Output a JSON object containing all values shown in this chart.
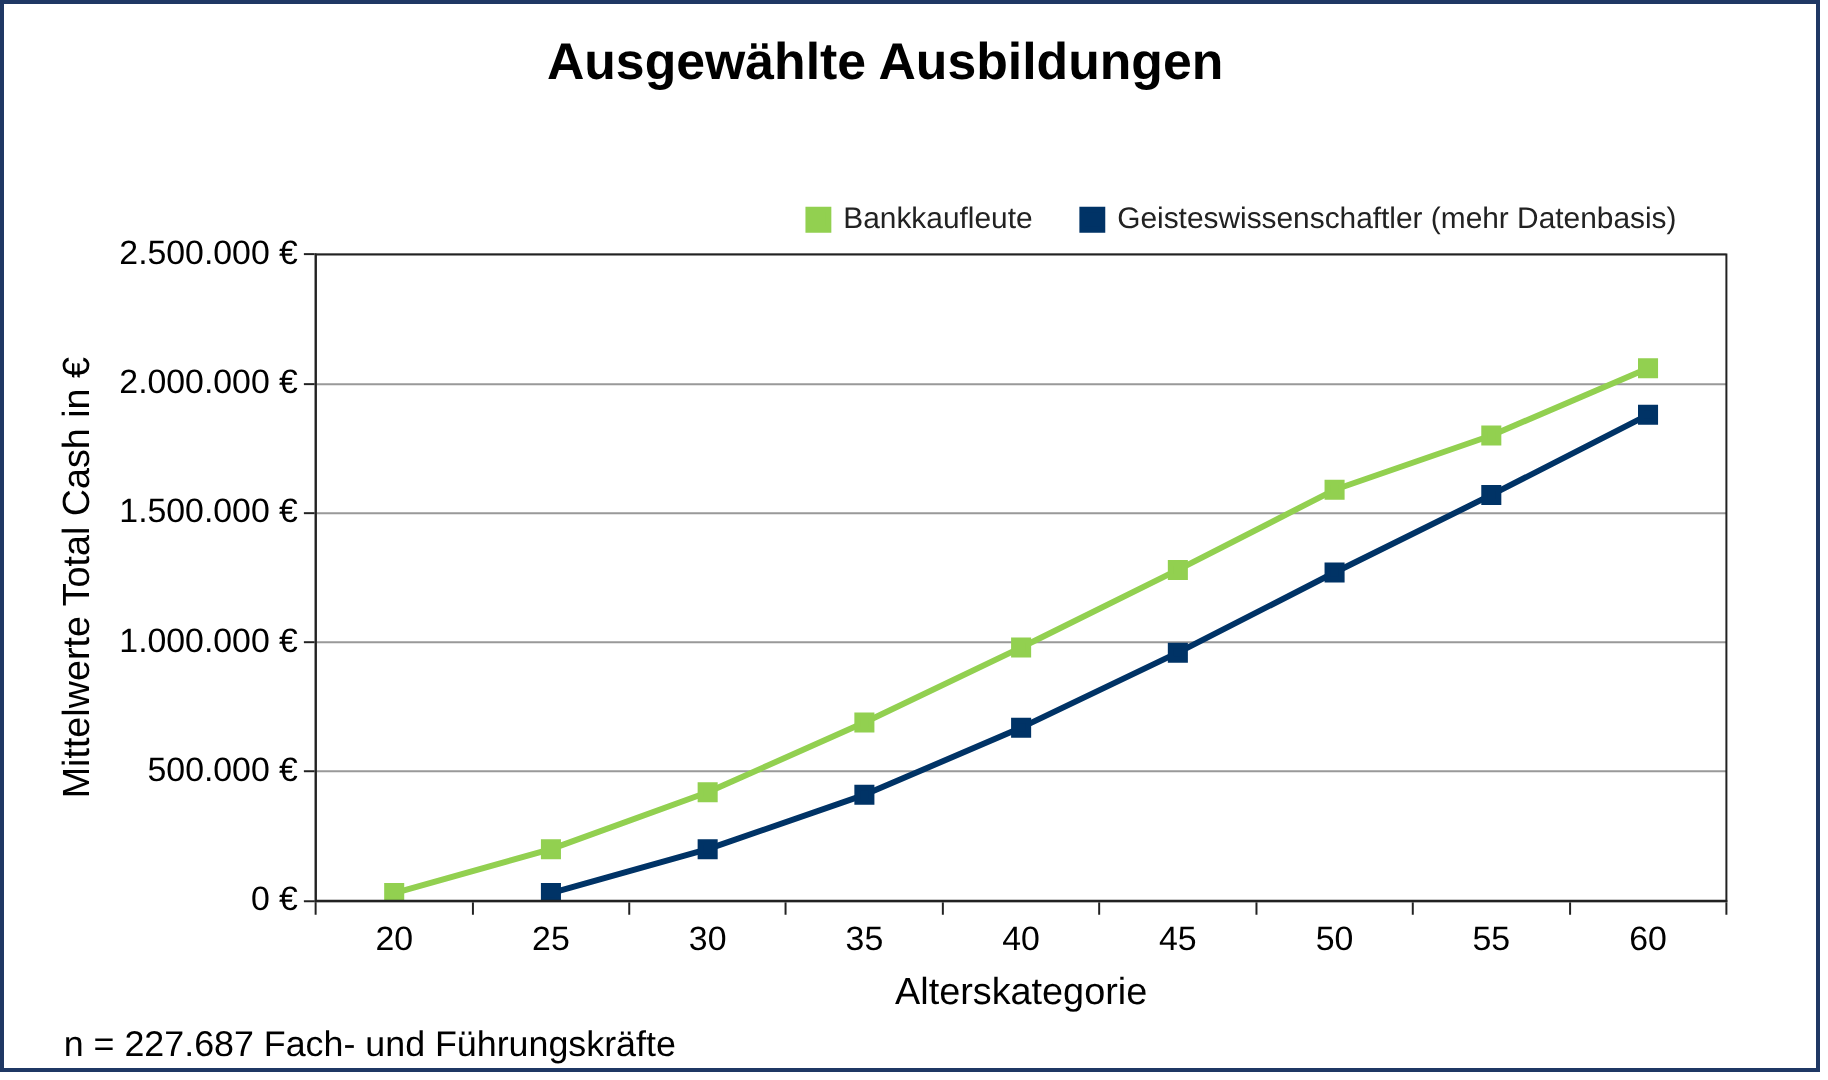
{
  "chart_data": {
    "type": "line",
    "title": "Ausgewählte Ausbildungen",
    "xlabel": "Alterskategorie",
    "ylabel": "Mittelwerte Total Cash in €",
    "categories": [
      "20",
      "25",
      "30",
      "35",
      "40",
      "45",
      "50",
      "55",
      "60"
    ],
    "series": [
      {
        "name": "Bankkaufleute",
        "color": "#92d050",
        "values": [
          30000,
          200000,
          420000,
          690000,
          980000,
          1280000,
          1590000,
          1800000,
          2060000
        ]
      },
      {
        "name": "Geisteswissenschaftler (mehr Datenbasis)",
        "color": "#003366",
        "values": [
          null,
          30000,
          200000,
          410000,
          670000,
          960000,
          1270000,
          1570000,
          1880000
        ]
      }
    ],
    "ylim": [
      0,
      2500000
    ],
    "yticks": [
      {
        "value": 0,
        "label": "0 €"
      },
      {
        "value": 500000,
        "label": "500.000 €"
      },
      {
        "value": 1000000,
        "label": "1.000.000 €"
      },
      {
        "value": 1500000,
        "label": "1.500.000 €"
      },
      {
        "value": 2000000,
        "label": "2.000.000 €"
      },
      {
        "value": 2500000,
        "label": "2.500.000 €"
      }
    ],
    "grid": "y",
    "legend": "top",
    "marker": "square",
    "line_style": "solid",
    "annotations": [
      "n = 227.687 Fach- und Führungskräfte"
    ]
  }
}
